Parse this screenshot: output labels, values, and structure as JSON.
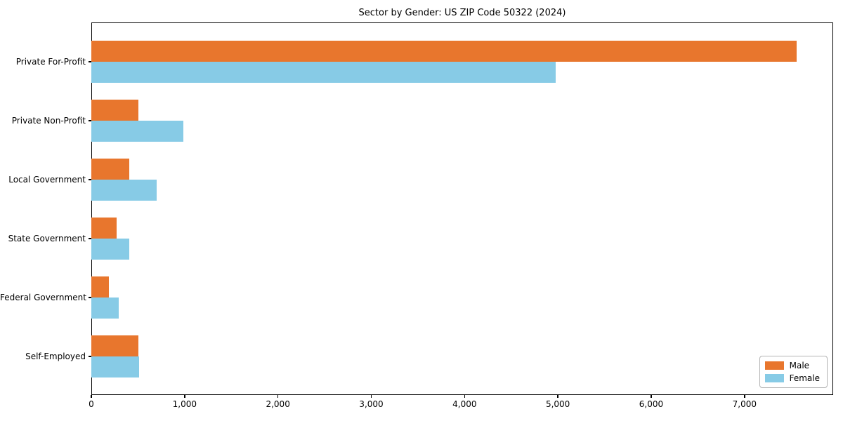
{
  "title": "Sector by Gender: US ZIP Code 50322 (2024)",
  "colors": {
    "male": "#e8762d",
    "female": "#87cbe6",
    "frame": "#000000",
    "text": "#000000"
  },
  "legend": {
    "position": "lower right",
    "items": [
      {
        "label": "Male",
        "color": "#e8762d"
      },
      {
        "label": "Female",
        "color": "#87cbe6"
      }
    ]
  },
  "chart_data": {
    "type": "bar",
    "orientation": "horizontal",
    "title": "Sector by Gender: US ZIP Code 50322 (2024)",
    "categories": [
      "Private For-Profit",
      "Private Non-Profit",
      "Local Government",
      "State Government",
      "Federal Government",
      "Self-Employed"
    ],
    "series": [
      {
        "name": "Male",
        "color": "#e8762d",
        "values": [
          7560,
          505,
          410,
          270,
          185,
          505
        ]
      },
      {
        "name": "Female",
        "color": "#87cbe6",
        "values": [
          4980,
          985,
          700,
          405,
          290,
          510
        ]
      }
    ],
    "xlabel": "",
    "ylabel": "",
    "xlim": [
      0,
      7950
    ],
    "xticks": [
      0,
      1000,
      2000,
      3000,
      4000,
      5000,
      6000,
      7000
    ],
    "xtick_labels": [
      "0",
      "1,000",
      "2,000",
      "3,000",
      "4,000",
      "5,000",
      "6,000",
      "7,000"
    ],
    "grid": false,
    "legend_position": "lower right"
  }
}
